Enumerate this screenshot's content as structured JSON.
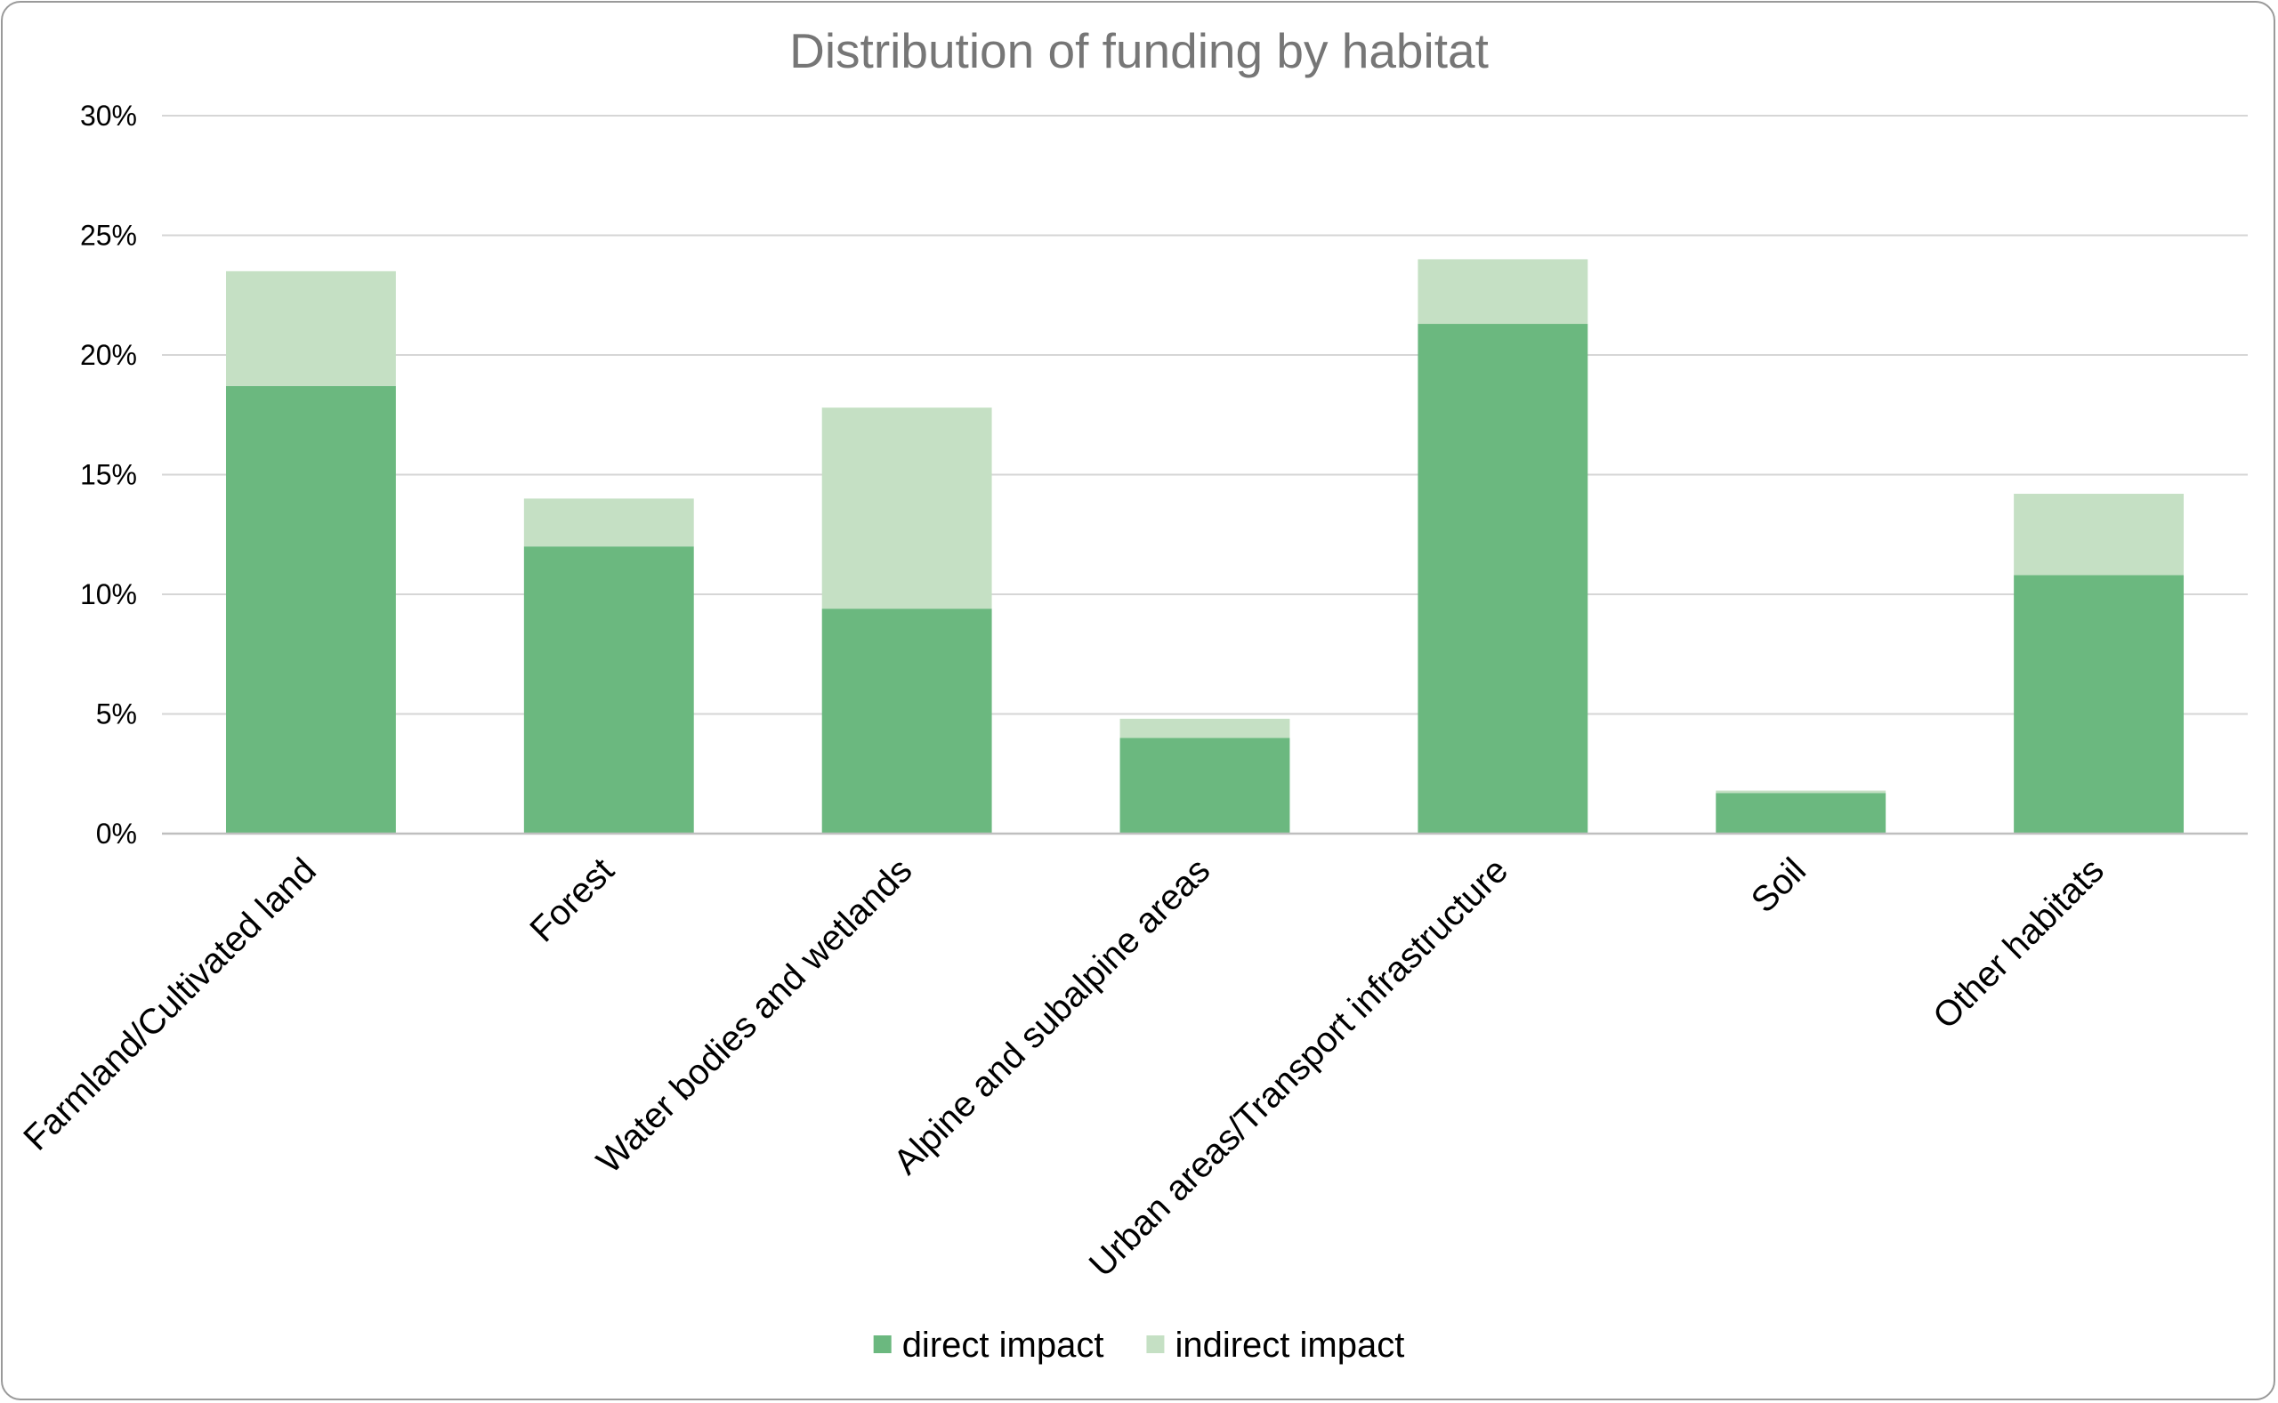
{
  "chart_data": {
    "type": "bar",
    "stacked": true,
    "title": "Distribution of funding by habitat",
    "xlabel": "",
    "ylabel": "",
    "ylim": [
      0,
      30
    ],
    "yticks": [
      "0%",
      "5%",
      "10%",
      "15%",
      "20%",
      "25%",
      "30%"
    ],
    "y_unit": "%",
    "grid": true,
    "legend_position": "bottom",
    "categories": [
      "Farmland/Cultivated land",
      "Forest",
      "Water bodies and wetlands",
      "Alpine and subalpine areas",
      "Urban areas/Transport infrastructure",
      "Soil",
      "Other habitats"
    ],
    "series": [
      {
        "name": "direct impact",
        "color": "#6bb87f",
        "values": [
          18.7,
          12.0,
          9.4,
          4.0,
          21.3,
          1.7,
          10.8
        ]
      },
      {
        "name": "indirect impact",
        "color": "#c5e0c4",
        "values": [
          4.8,
          2.0,
          8.4,
          0.8,
          2.7,
          0.1,
          3.4
        ]
      }
    ]
  }
}
